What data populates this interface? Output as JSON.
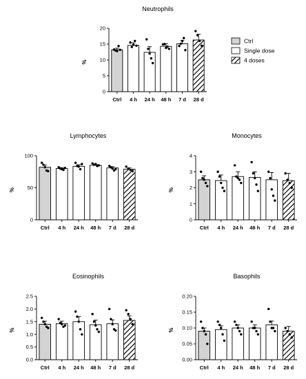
{
  "legend": {
    "items": [
      {
        "label": "Ctrl",
        "fill": "#d3d3d3"
      },
      {
        "label": "Single dose",
        "fill": "#ffffff"
      },
      {
        "label": "4 doses",
        "fill": "hatch"
      }
    ]
  },
  "colors": {
    "ctrl": "#d3d3d3",
    "single": "#ffffff",
    "stroke": "#000000"
  },
  "chart_data": [
    {
      "id": "neutrophils",
      "type": "bar",
      "title": "Neutrophils",
      "ylabel": "%",
      "ylim": [
        0,
        20
      ],
      "yticks": [
        "0",
        "5",
        "10",
        "15",
        "20"
      ],
      "categories": [
        "Ctrl",
        "4 h",
        "24 h",
        "48 h",
        "7 d",
        "28 d"
      ],
      "values": [
        13.2,
        14.6,
        12.4,
        14.3,
        15.1,
        16.3
      ],
      "errors": [
        0.5,
        0.8,
        1.8,
        0.8,
        1.0,
        1.8
      ],
      "points": [
        [
          13.3,
          13.0,
          12.8,
          14.4,
          13.2
        ],
        [
          15.5,
          14.1,
          14.8,
          16.0,
          14.5
        ],
        [
          16.5,
          13.5,
          12.0,
          10.5,
          9.0
        ],
        [
          14.9,
          15.0,
          13.8,
          14.2,
          13.5
        ],
        [
          14.4,
          15.1,
          16.0,
          16.9,
          13.1
        ],
        [
          19.1,
          17.8,
          16.0,
          14.5
        ]
      ]
    },
    {
      "id": "lymphocytes",
      "type": "bar",
      "title": "Lymphocytes",
      "ylabel": "%",
      "ylim": [
        0,
        100
      ],
      "yticks": [
        "0",
        "50",
        "100"
      ],
      "categories": [
        "Ctrl",
        "4 h",
        "24 h",
        "48 h",
        "7 d",
        "28 d"
      ],
      "values": [
        82.0,
        80.0,
        83.5,
        85.0,
        81.0,
        79.0
      ],
      "errors": [
        3.5,
        1.5,
        2.5,
        1.0,
        2.0,
        2.0
      ],
      "points": [
        [
          89.0,
          86.0,
          82.0,
          77.0,
          76.0
        ],
        [
          82.0,
          80.0,
          79.0,
          78.0,
          81.0
        ],
        [
          89.0,
          84.0,
          83.0,
          79.0,
          87.0
        ],
        [
          88.0,
          86.0,
          87.0,
          84.0,
          85.0
        ],
        [
          84.0,
          82.0,
          80.0,
          77.0,
          79.0
        ],
        [
          83.0,
          80.0,
          78.0,
          76.0
        ]
      ]
    },
    {
      "id": "monocytes",
      "type": "bar",
      "title": "Monocytes",
      "ylabel": "%",
      "ylim": [
        0,
        4
      ],
      "yticks": [
        "0",
        "1",
        "2",
        "3",
        "4"
      ],
      "categories": [
        "Ctrl",
        "4 h",
        "24 h",
        "48 h",
        "7 d",
        "28 d"
      ],
      "values": [
        2.5,
        2.45,
        2.7,
        2.65,
        2.5,
        2.45
      ],
      "errors": [
        0.25,
        0.35,
        0.3,
        0.35,
        0.45,
        0.45
      ],
      "points": [
        [
          3.0,
          2.6,
          2.5,
          2.3,
          2.1
        ],
        [
          3.0,
          2.7,
          2.3,
          2.0,
          1.8
        ],
        [
          3.4,
          2.7,
          2.6,
          2.5,
          2.3
        ],
        [
          3.6,
          2.9,
          2.6,
          2.2,
          1.8
        ],
        [
          3.0,
          2.6,
          1.9,
          1.5,
          1.2
        ],
        [
          2.9,
          2.5,
          2.3,
          2.0
        ]
      ]
    },
    {
      "id": "eosinophils",
      "type": "bar",
      "title": "Eosinophils",
      "ylabel": "%",
      "ylim": [
        0,
        2.5
      ],
      "yticks": [
        "0.0",
        "0.5",
        "1.0",
        "1.5",
        "2.0",
        "2.5"
      ],
      "categories": [
        "Ctrl",
        "4 h",
        "24 h",
        "48 h",
        "7 d",
        "28 d"
      ],
      "values": [
        1.4,
        1.42,
        1.5,
        1.38,
        1.42,
        1.55
      ],
      "errors": [
        0.12,
        0.1,
        0.2,
        0.18,
        0.15,
        0.18
      ],
      "points": [
        [
          1.65,
          1.5,
          1.4,
          1.3,
          1.25
        ],
        [
          1.6,
          1.45,
          1.4,
          1.3,
          1.35
        ],
        [
          1.9,
          1.7,
          1.5,
          1.2,
          1.0
        ],
        [
          1.8,
          1.5,
          1.35,
          1.2,
          1.1
        ],
        [
          2.0,
          1.6,
          1.4,
          1.2,
          1.15
        ],
        [
          1.95,
          1.8,
          1.6,
          1.4
        ]
      ]
    },
    {
      "id": "basophils",
      "type": "bar",
      "title": "Basophils",
      "ylabel": "%",
      "ylim": [
        0,
        0.2
      ],
      "yticks": [
        "0.00",
        "0.05",
        "0.10",
        "0.15",
        "0.20"
      ],
      "categories": [
        "Ctrl",
        "4 h",
        "24 h",
        "48 h",
        "7 d",
        "28 d"
      ],
      "values": [
        0.09,
        0.095,
        0.1,
        0.1,
        0.11,
        0.09
      ],
      "errors": [
        0.01,
        0.012,
        0.01,
        0.01,
        0.012,
        0.015
      ],
      "points": [
        [
          0.12,
          0.1,
          0.09,
          0.08,
          0.05
        ],
        [
          0.12,
          0.11,
          0.1,
          0.08,
          0.06
        ],
        [
          0.12,
          0.11,
          0.1,
          0.09,
          0.08
        ],
        [
          0.12,
          0.1,
          0.1,
          0.09,
          0.08
        ],
        [
          0.16,
          0.12,
          0.1,
          0.1,
          0.09
        ],
        [
          0.1,
          0.09,
          0.08,
          0.07
        ]
      ]
    }
  ]
}
